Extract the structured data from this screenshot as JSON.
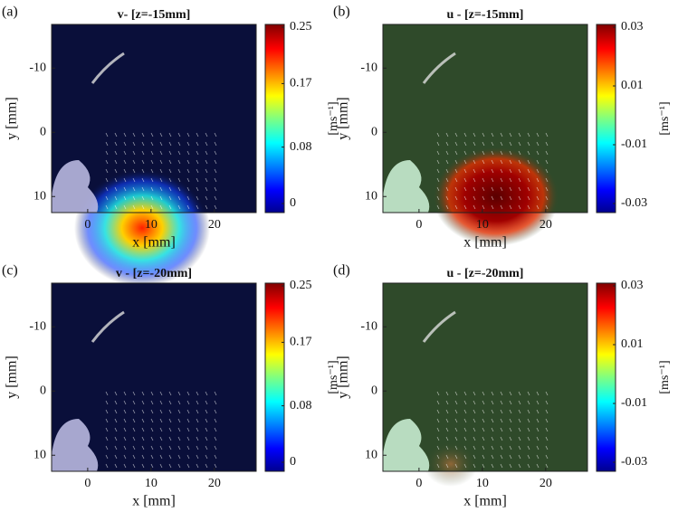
{
  "chart_data": [
    {
      "type": "heatmap",
      "panel": "(a)",
      "title": "v- [z=-15mm]",
      "x_label": "x [mm]",
      "y_label": "y [mm]",
      "xlim": [
        -5.7,
        26.6
      ],
      "xticks": [
        0,
        10,
        20
      ],
      "ylim": [
        -16.8,
        12.5
      ],
      "y_inverted": true,
      "yticks": [
        -10,
        0,
        10
      ],
      "background": "#0a0f3a",
      "colormap": "jet",
      "colorbar": {
        "label": "[ms⁻¹]",
        "lim": [
          0,
          0.25
        ],
        "ticks": [
          0,
          0.08,
          0.17,
          0.25
        ]
      }
    },
    {
      "type": "heatmap",
      "panel": "(b)",
      "title": "u - [z=-15mm]",
      "x_label": "x [mm]",
      "y_label": "y [mm]",
      "xlim": [
        -5.7,
        26.6
      ],
      "xticks": [
        0,
        10,
        20
      ],
      "ylim": [
        -16.8,
        12.5
      ],
      "y_inverted": true,
      "yticks": [
        -10,
        0,
        10
      ],
      "background": "#2f4a2a",
      "colormap": "jet",
      "colorbar": {
        "label": "[ms⁻¹]",
        "lim": [
          -0.03,
          0.03
        ],
        "ticks": [
          -0.03,
          -0.01,
          0.01,
          0.03
        ]
      }
    },
    {
      "type": "heatmap",
      "panel": "(c)",
      "title": "v - [z=-20mm]",
      "x_label": "x [mm]",
      "y_label": "y [mm]",
      "xlim": [
        -5.7,
        26.6
      ],
      "xticks": [
        0,
        10,
        20
      ],
      "ylim": [
        -16.8,
        12.5
      ],
      "y_inverted": true,
      "yticks": [
        -10,
        0,
        10
      ],
      "background": "#0a0f3a",
      "colormap": "jet",
      "colorbar": {
        "label": "[ms⁻¹]",
        "lim": [
          0,
          0.25
        ],
        "ticks": [
          0,
          0.08,
          0.17,
          0.25
        ]
      }
    },
    {
      "type": "heatmap",
      "panel": "(d)",
      "title": "u - [z=-20mm]",
      "x_label": "x [mm]",
      "y_label": "y [mm]",
      "xlim": [
        -5.7,
        26.6
      ],
      "xticks": [
        0,
        10,
        20
      ],
      "ylim": [
        -16.8,
        12.5
      ],
      "y_inverted": true,
      "yticks": [
        -10,
        0,
        10
      ],
      "background": "#2f4a2a",
      "colormap": "jet",
      "colorbar": {
        "label": "[ms⁻¹]",
        "lim": [
          -0.03,
          0.03
        ],
        "ticks": [
          -0.03,
          -0.01,
          0.01,
          0.03
        ]
      }
    }
  ]
}
